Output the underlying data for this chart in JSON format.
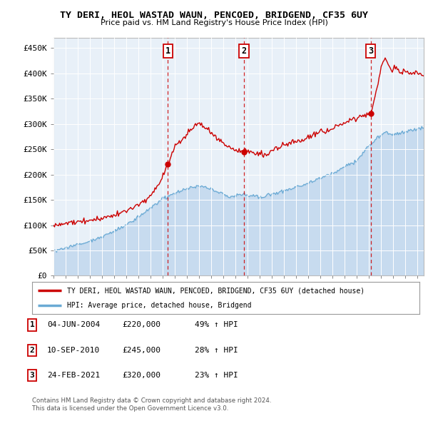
{
  "title1": "TY DERI, HEOL WASTAD WAUN, PENCOED, BRIDGEND, CF35 6UY",
  "title2": "Price paid vs. HM Land Registry's House Price Index (HPI)",
  "ylabel_ticks": [
    "£0",
    "£50K",
    "£100K",
    "£150K",
    "£200K",
    "£250K",
    "£300K",
    "£350K",
    "£400K",
    "£450K"
  ],
  "ylabel_values": [
    0,
    50000,
    100000,
    150000,
    200000,
    250000,
    300000,
    350000,
    400000,
    450000
  ],
  "ylim": [
    0,
    470000
  ],
  "xlim_start": 1995.0,
  "xlim_end": 2025.5,
  "sale_dates": [
    2004.42,
    2010.69,
    2021.15
  ],
  "sale_prices": [
    220000,
    245000,
    320000
  ],
  "sale_labels": [
    "1",
    "2",
    "3"
  ],
  "sale_info": [
    {
      "label": "1",
      "date": "04-JUN-2004",
      "price": "£220,000",
      "hpi": "49% ↑ HPI"
    },
    {
      "label": "2",
      "date": "10-SEP-2010",
      "price": "£245,000",
      "hpi": "28% ↑ HPI"
    },
    {
      "label": "3",
      "date": "24-FEB-2021",
      "price": "£320,000",
      "hpi": "23% ↑ HPI"
    }
  ],
  "legend_line1": "TY DERI, HEOL WASTAD WAUN, PENCOED, BRIDGEND, CF35 6UY (detached house)",
  "legend_line2": "HPI: Average price, detached house, Bridgend",
  "footer1": "Contains HM Land Registry data © Crown copyright and database right 2024.",
  "footer2": "This data is licensed under the Open Government Licence v3.0.",
  "hpi_color": "#a8c8e8",
  "price_color": "#cc0000",
  "plot_bg": "#e8f0f8"
}
